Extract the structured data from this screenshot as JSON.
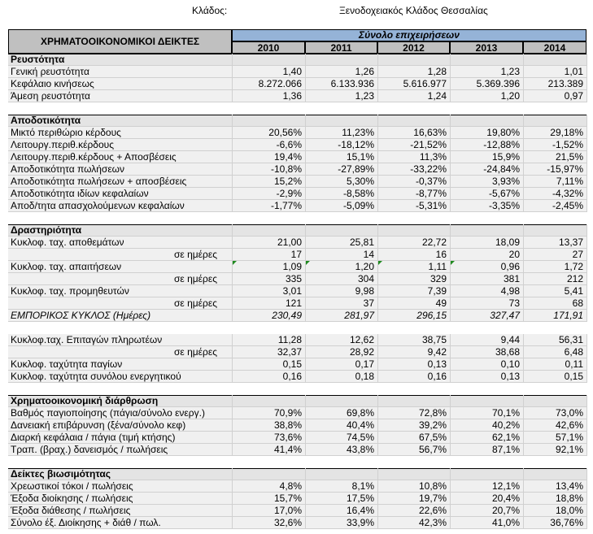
{
  "header": {
    "klados_label": "Κλάδος:",
    "klados_value": "Ξενοδοχειακός Κλάδος Θεσσαλίας",
    "main_title": "ΧΡΗΜΑΤΟΟΙΚΟΝΟΜΙΚΟΙ ΔΕΙΚΤΕΣ",
    "group_title": "Σύνολο επιχειρήσεων",
    "years": [
      "2010",
      "2011",
      "2012",
      "2013",
      "2014"
    ]
  },
  "sections": [
    {
      "title": "Ρευστότητα",
      "rows": [
        {
          "label": "Γενική ρευστότητα",
          "values": [
            "1,40",
            "1,26",
            "1,28",
            "1,23",
            "1,01"
          ]
        },
        {
          "label": "Κεφάλαιο κινήσεως",
          "values": [
            "8.272.066",
            "6.133.936",
            "5.616.977",
            "5.369.396",
            "213.389"
          ]
        },
        {
          "label": "Άμεση ρευστότητα",
          "values": [
            "1,36",
            "1,23",
            "1,24",
            "1,20",
            "0,97"
          ]
        }
      ]
    },
    {
      "title": "Αποδοτικότητα",
      "rows": [
        {
          "label": "Μικτό περιθώριο κέρδους",
          "values": [
            "20,56%",
            "11,23%",
            "16,63%",
            "19,80%",
            "29,18%"
          ]
        },
        {
          "label": "Λειτουργ.περιθ.κέρδους",
          "values": [
            "-6,6%",
            "-18,12%",
            "-21,52%",
            "-12,88%",
            "-1,52%"
          ]
        },
        {
          "label": "Λειτουργ.περιθ.κέρδους + Αποσβέσεις",
          "values": [
            "19,4%",
            "15,1%",
            "11,3%",
            "15,9%",
            "21,5%"
          ]
        },
        {
          "label": "Αποδοτικότητα πωλήσεων",
          "values": [
            "-10,8%",
            "-27,89%",
            "-33,22%",
            "-24,84%",
            "-15,97%"
          ]
        },
        {
          "label": "Αποδοτικότητα πωλήσεων + αποσβέσεις",
          "values": [
            "15,2%",
            "5,30%",
            "-0,37%",
            "3,93%",
            "7,11%"
          ]
        },
        {
          "label": "Αποδοτικότητα ιδίων κεφαλαίων",
          "values": [
            "-2,9%",
            "-8,58%",
            "-8,77%",
            "-5,67%",
            "-4,32%"
          ]
        },
        {
          "label": "Αποδ/τητα απασχολούμενων κεφαλαίων",
          "values": [
            "-1,77%",
            "-5,09%",
            "-5,31%",
            "-3,35%",
            "-2,45%"
          ]
        }
      ]
    },
    {
      "title": "Δραστηριότητα",
      "rows": [
        {
          "label": "Κυκλοφ. ταχ. αποθεμάτων",
          "values": [
            "21,00",
            "25,81",
            "22,72",
            "18,09",
            "13,37"
          ]
        },
        {
          "label": "σε ημέρες",
          "values": [
            "17",
            "14",
            "16",
            "20",
            "27"
          ]
        },
        {
          "label": "Κυκλοφ. ταχ. απαιτήσεων",
          "values": [
            "1,09",
            "1,20",
            "1,11",
            "0,96",
            "1,72"
          ]
        },
        {
          "label": "σε ημέρες",
          "values": [
            "335",
            "304",
            "329",
            "381",
            "212"
          ]
        },
        {
          "label": "Κυκλοφ. ταχ. προμηθευτών",
          "values": [
            "3,01",
            "9,98",
            "7,39",
            "4,98",
            "5,41"
          ]
        },
        {
          "label": "σε ημέρες",
          "values": [
            "121",
            "37",
            "49",
            "73",
            "68"
          ]
        },
        {
          "label": "ΕΜΠΟΡΙΚΟΣ ΚΥΚΛΟΣ (Ημέρες)",
          "values": [
            "230,49",
            "281,97",
            "296,15",
            "327,47",
            "171,91"
          ]
        },
        {
          "label": "Κυκλοφ.ταχ. Επιταγών πληρωτέων",
          "values": [
            "11,28",
            "12,62",
            "38,75",
            "9,44",
            "56,31"
          ]
        },
        {
          "label": "σε ημέρες",
          "values": [
            "32,37",
            "28,92",
            "9,42",
            "38,68",
            "6,48"
          ]
        },
        {
          "label": "Κυκλοφ. ταχύτητα παγίων",
          "values": [
            "0,15",
            "0,17",
            "0,13",
            "0,10",
            "0,11"
          ]
        },
        {
          "label": "Κυκλοφ. ταχύτητα συνόλου ενεργητικού",
          "values": [
            "0,16",
            "0,18",
            "0,16",
            "0,13",
            "0,15"
          ]
        }
      ]
    },
    {
      "title": "Χρηματοοικονομική διάρθρωση",
      "rows": [
        {
          "label": "Βαθμός παγιοποίησης (πάγια/σύνολο ενεργ.)",
          "values": [
            "70,9%",
            "69,8%",
            "72,8%",
            "70,1%",
            "73,0%"
          ]
        },
        {
          "label": "Δανειακή επιβάρυνση (ξένα/σύνολο κεφ)",
          "values": [
            "38,8%",
            "40,4%",
            "39,2%",
            "40,2%",
            "42,6%"
          ]
        },
        {
          "label": "Διαρκή κεφάλαια / πάγια (τιμή κτήσης)",
          "values": [
            "73,6%",
            "74,5%",
            "67,5%",
            "62,1%",
            "57,1%"
          ]
        },
        {
          "label": "Τραπ. (βραχ.) δανεισμός / πωλήσεις",
          "values": [
            "41,4%",
            "43,8%",
            "56,7%",
            "87,1%",
            "92,1%"
          ]
        }
      ]
    },
    {
      "title": "Δείκτες βιωσιμότητας",
      "rows": [
        {
          "label": "Χρεωστικοί τόκοι / πωλήσεις",
          "values": [
            "4,8%",
            "8,1%",
            "10,8%",
            "12,1%",
            "13,4%"
          ]
        },
        {
          "label": "Έξοδα διοίκησης / πωλήσεις",
          "values": [
            "15,7%",
            "17,5%",
            "19,7%",
            "20,4%",
            "18,8%"
          ]
        },
        {
          "label": "Έξοδα διάθεσης / πωλήσεις",
          "values": [
            "17,0%",
            "16,4%",
            "22,6%",
            "20,7%",
            "18,0%"
          ]
        },
        {
          "label": "Σύνολο έξ. Διοίκησης + διάθ / πωλ.",
          "values": [
            "32,6%",
            "33,9%",
            "42,3%",
            "41,0%",
            "36,76%"
          ]
        }
      ]
    }
  ]
}
